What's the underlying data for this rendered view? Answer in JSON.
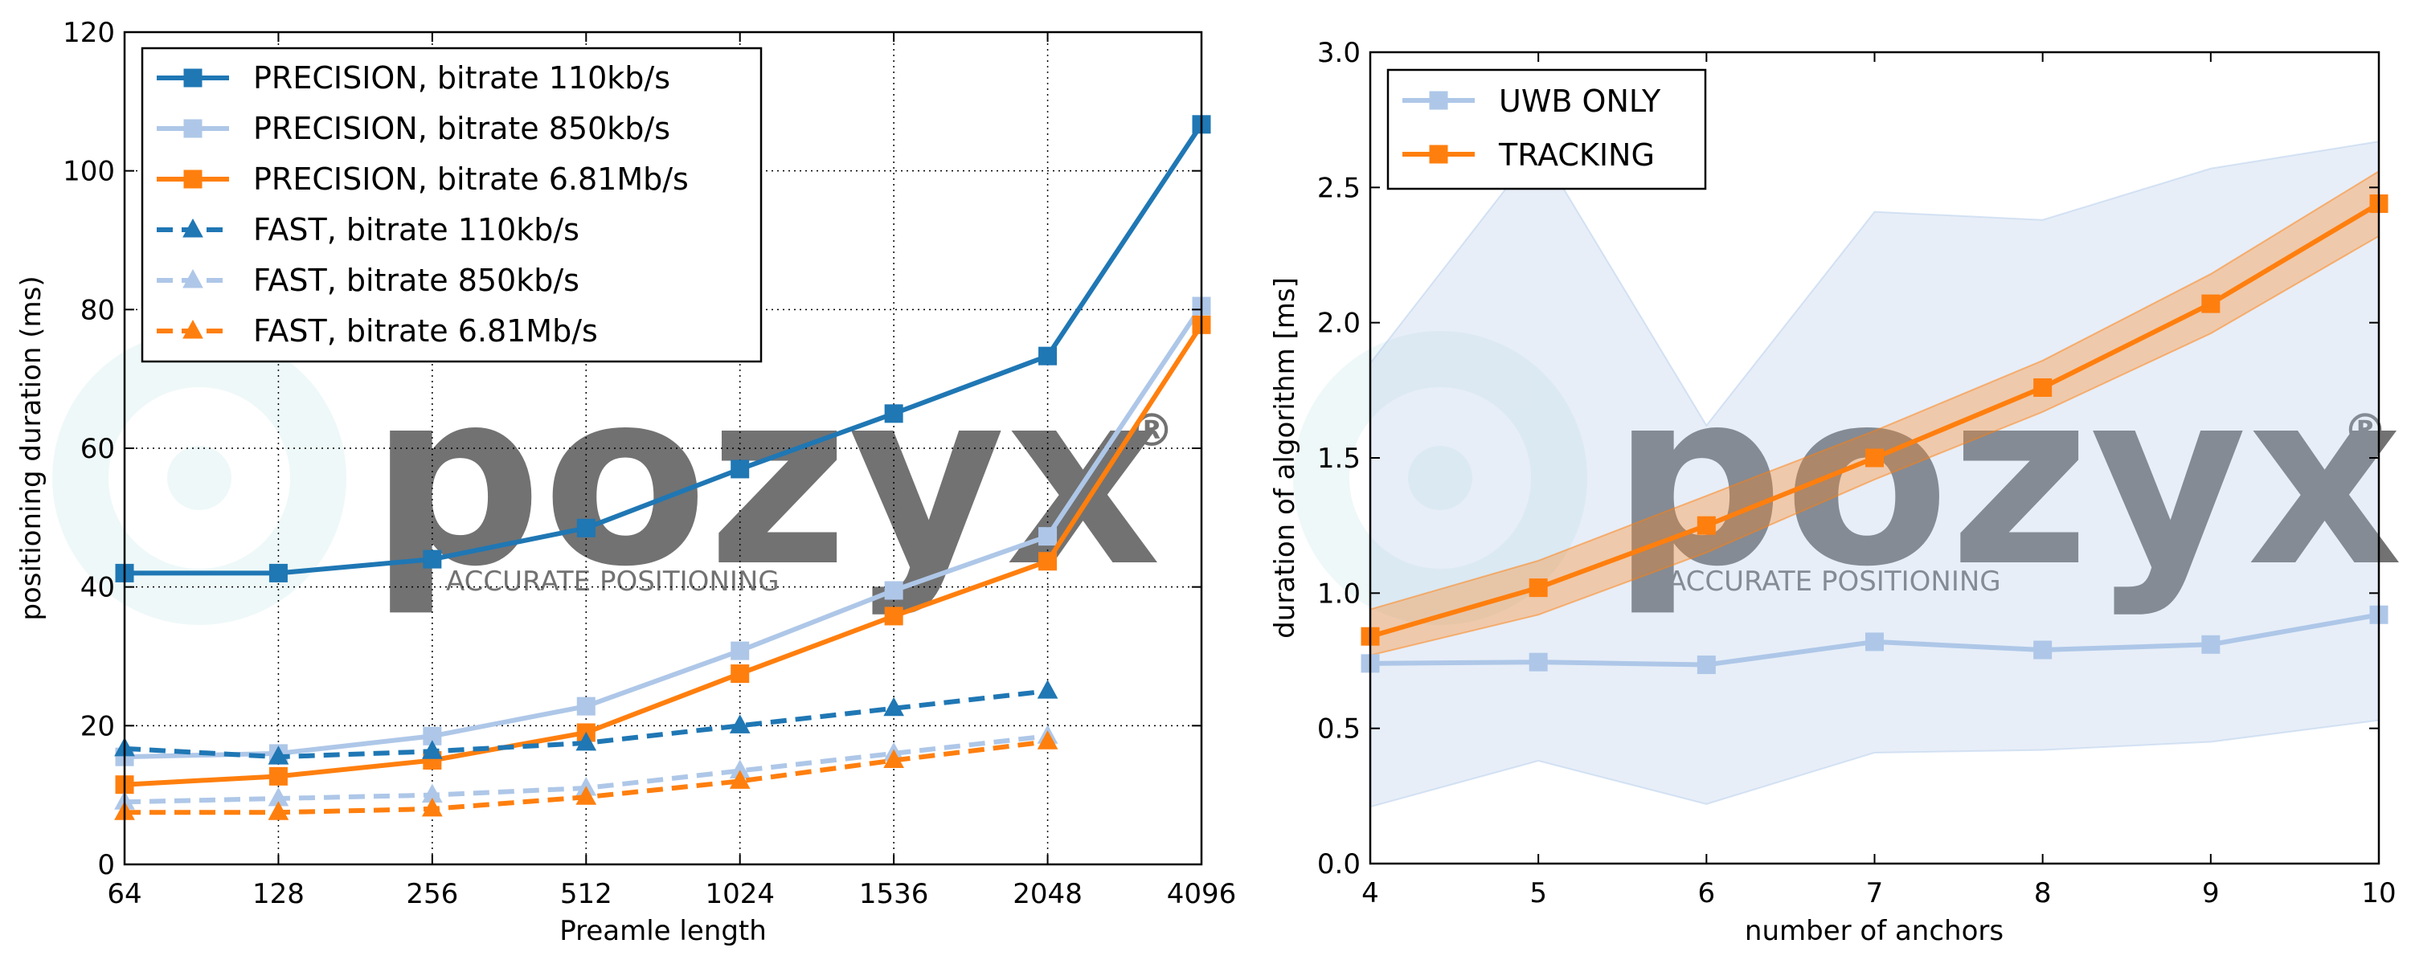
{
  "watermark": {
    "brand": "pozyx",
    "registered": "®",
    "tagline": "ACCURATE POSITIONING"
  },
  "chart_data": [
    {
      "type": "line",
      "title": "",
      "xlabel": "Preamle length",
      "ylabel": "positioning duration (ms)",
      "x_categories": [
        "64",
        "128",
        "256",
        "512",
        "1024",
        "1536",
        "2048",
        "4096"
      ],
      "ylim": [
        0,
        120
      ],
      "yticks": [
        "0",
        "20",
        "40",
        "60",
        "80",
        "100",
        "120"
      ],
      "grid": true,
      "legend_position": "upper-left",
      "series": [
        {
          "name": "PRECISION, bitrate 110kb/s",
          "color": "#1f77b4",
          "style": "solid",
          "marker": "square",
          "values": [
            42,
            42,
            44,
            48.5,
            57,
            65,
            73.3,
            106.7
          ]
        },
        {
          "name": "PRECISION, bitrate 850kb/s",
          "color": "#aec7e8",
          "style": "solid",
          "marker": "square",
          "values": [
            15.5,
            16,
            18.5,
            22.8,
            30.8,
            39.5,
            47.3,
            80.5
          ]
        },
        {
          "name": "PRECISION, bitrate 6.81Mb/s",
          "color": "#ff7f0e",
          "style": "solid",
          "marker": "square",
          "values": [
            11.5,
            12.7,
            15,
            19,
            27.5,
            35.8,
            43.7,
            77.8
          ]
        },
        {
          "name": "FAST, bitrate 110kb/s",
          "color": "#1f77b4",
          "style": "dashed",
          "marker": "triangle",
          "values": [
            16.7,
            15.5,
            16.3,
            17.5,
            20,
            22.5,
            25
          ]
        },
        {
          "name": "FAST, bitrate 850kb/s",
          "color": "#aec7e8",
          "style": "dashed",
          "marker": "triangle",
          "values": [
            9,
            9.5,
            10,
            11,
            13.5,
            16,
            18.5
          ]
        },
        {
          "name": "FAST, bitrate 6.81Mb/s",
          "color": "#ff7f0e",
          "style": "dashed",
          "marker": "triangle",
          "values": [
            7.5,
            7.5,
            8,
            9.7,
            12,
            15,
            17.7
          ]
        }
      ]
    },
    {
      "type": "line",
      "title": "",
      "xlabel": "number of anchors",
      "ylabel": "duration of algorithm [ms]",
      "x": [
        4,
        5,
        6,
        7,
        8,
        9,
        10
      ],
      "xticks": [
        "4",
        "5",
        "6",
        "7",
        "8",
        "9",
        "10"
      ],
      "xlim": [
        4,
        10
      ],
      "ylim": [
        0,
        3.0
      ],
      "yticks": [
        "0.0",
        "0.5",
        "1.0",
        "1.5",
        "2.0",
        "2.5",
        "3.0"
      ],
      "grid": false,
      "legend_position": "upper-left",
      "series": [
        {
          "name": "UWB ONLY",
          "color": "#aec7e8",
          "style": "solid",
          "marker": "square",
          "values": [
            0.74,
            0.745,
            0.735,
            0.82,
            0.79,
            0.81,
            0.92
          ],
          "band_lower": [
            0.21,
            0.38,
            0.22,
            0.41,
            0.42,
            0.45,
            0.53
          ],
          "band_upper": [
            1.85,
            2.65,
            1.62,
            2.41,
            2.38,
            2.57,
            2.67
          ]
        },
        {
          "name": "TRACKING",
          "color": "#ff7f0e",
          "style": "solid",
          "marker": "square",
          "values": [
            0.84,
            1.02,
            1.25,
            1.5,
            1.76,
            2.07,
            2.44
          ],
          "band_lower": [
            0.77,
            0.92,
            1.15,
            1.42,
            1.67,
            1.96,
            2.32
          ],
          "band_upper": [
            0.94,
            1.12,
            1.36,
            1.6,
            1.86,
            2.18,
            2.56
          ]
        }
      ]
    }
  ]
}
